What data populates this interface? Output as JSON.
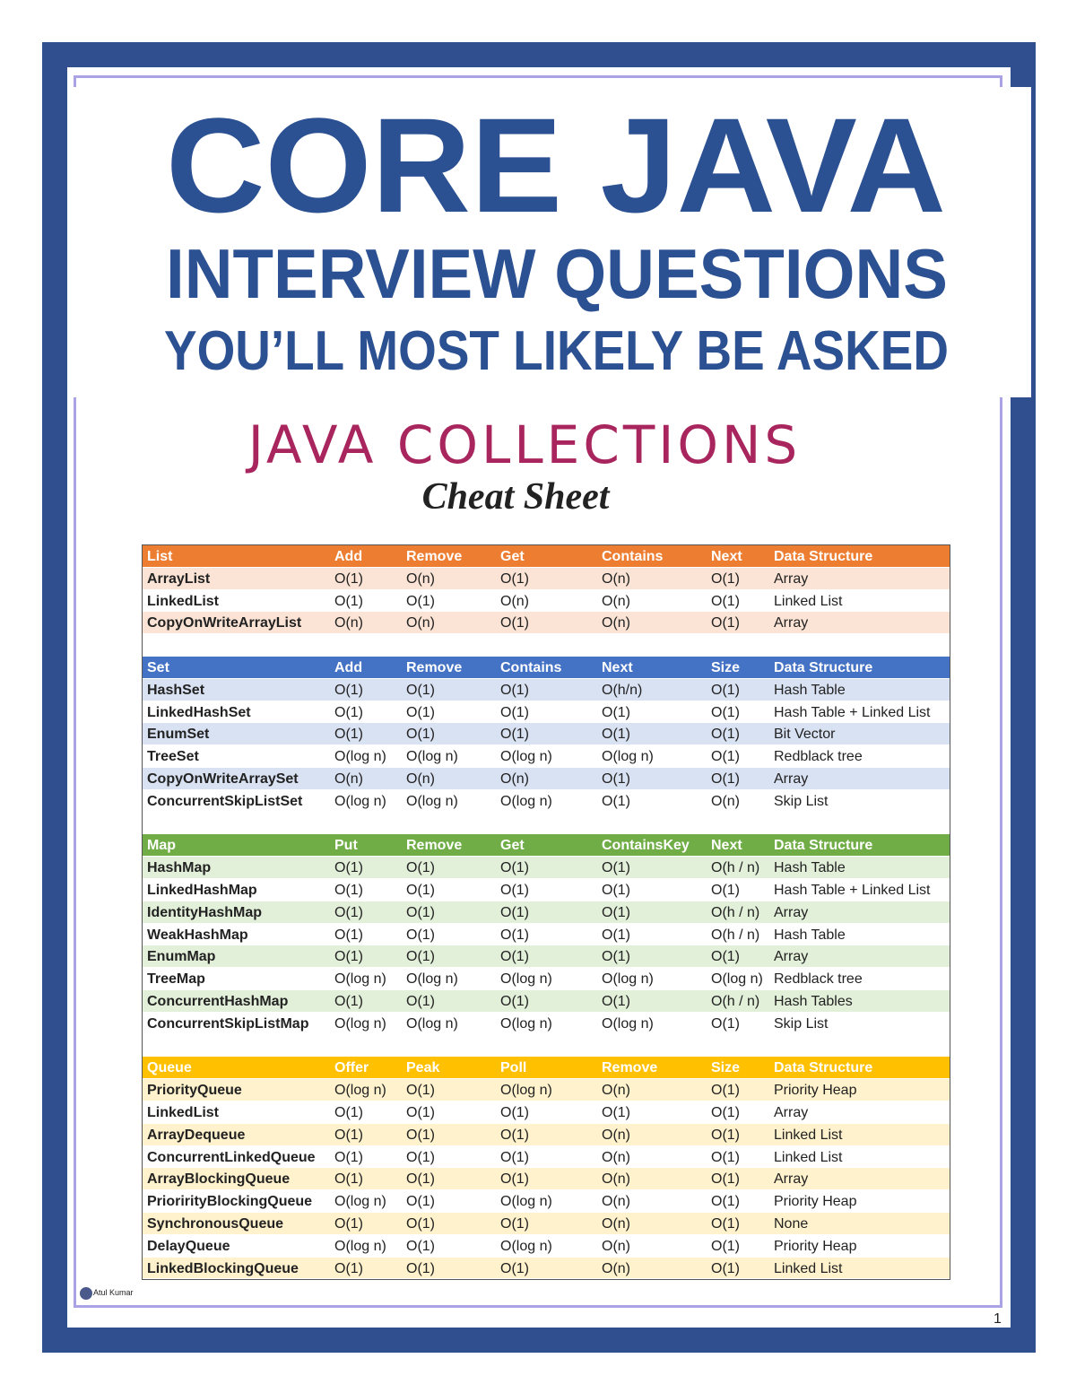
{
  "header": {
    "title": "CORE JAVA",
    "subtitle": "INTERVIEW QUESTIONS",
    "tagline": "YOU’LL MOST LIKELY BE ASKED"
  },
  "sheet": {
    "title": "JAVA COLLECTIONS",
    "subtitle": "Cheat Sheet"
  },
  "table": {
    "sections": [
      {
        "header": [
          "List",
          "Add",
          "Remove",
          "Get",
          "Contains",
          "Next",
          "Data Structure"
        ],
        "rows": [
          [
            "ArrayList",
            "O(1)",
            "O(n)",
            "O(1)",
            "O(n)",
            "O(1)",
            "Array"
          ],
          [
            "LinkedList",
            "O(1)",
            "O(1)",
            "O(n)",
            "O(n)",
            "O(1)",
            "Linked List"
          ],
          [
            "CopyOnWriteArrayList",
            "O(n)",
            "O(n)",
            "O(1)",
            "O(n)",
            "O(1)",
            "Array"
          ]
        ]
      },
      {
        "header": [
          "Set",
          "Add",
          "Remove",
          "Contains",
          "Next",
          "Size",
          "Data Structure"
        ],
        "rows": [
          [
            "HashSet",
            "O(1)",
            "O(1)",
            "O(1)",
            "O(h/n)",
            "O(1)",
            "Hash Table"
          ],
          [
            "LinkedHashSet",
            "O(1)",
            "O(1)",
            "O(1)",
            "O(1)",
            "O(1)",
            "Hash Table + Linked List"
          ],
          [
            "EnumSet",
            "O(1)",
            "O(1)",
            "O(1)",
            "O(1)",
            "O(1)",
            "Bit Vector"
          ],
          [
            "TreeSet",
            "O(log n)",
            "O(log n)",
            "O(log n)",
            "O(log n)",
            "O(1)",
            "Redblack tree"
          ],
          [
            "CopyOnWriteArraySet",
            "O(n)",
            "O(n)",
            "O(n)",
            "O(1)",
            "O(1)",
            "Array"
          ],
          [
            "ConcurrentSkipListSet",
            "O(log n)",
            "O(log n)",
            "O(log n)",
            "O(1)",
            "O(n)",
            "Skip List"
          ]
        ]
      },
      {
        "header": [
          "Map",
          "Put",
          "Remove",
          "Get",
          "ContainsKey",
          "Next",
          "Data Structure"
        ],
        "rows": [
          [
            "HashMap",
            "O(1)",
            "O(1)",
            "O(1)",
            "O(1)",
            "O(h / n)",
            "Hash Table"
          ],
          [
            "LinkedHashMap",
            "O(1)",
            "O(1)",
            "O(1)",
            "O(1)",
            "O(1)",
            "Hash Table + Linked List"
          ],
          [
            "IdentityHashMap",
            "O(1)",
            "O(1)",
            "O(1)",
            "O(1)",
            "O(h / n)",
            "Array"
          ],
          [
            "WeakHashMap",
            "O(1)",
            "O(1)",
            "O(1)",
            "O(1)",
            "O(h / n)",
            "Hash Table"
          ],
          [
            "EnumMap",
            "O(1)",
            "O(1)",
            "O(1)",
            "O(1)",
            "O(1)",
            "Array"
          ],
          [
            "TreeMap",
            "O(log n)",
            "O(log n)",
            "O(log n)",
            "O(log n)",
            "O(log n)",
            "Redblack tree"
          ],
          [
            "ConcurrentHashMap",
            "O(1)",
            "O(1)",
            "O(1)",
            "O(1)",
            "O(h / n)",
            "Hash Tables"
          ],
          [
            "ConcurrentSkipListMap",
            "O(log n)",
            "O(log n)",
            "O(log n)",
            "O(log n)",
            "O(1)",
            "Skip List"
          ]
        ]
      },
      {
        "header": [
          "Queue",
          "Offer",
          "Peak",
          "Poll",
          "Remove",
          "Size",
          "Data Structure"
        ],
        "rows": [
          [
            "PriorityQueue",
            "O(log n)",
            "O(1)",
            "O(log n)",
            "O(n)",
            "O(1)",
            "Priority Heap"
          ],
          [
            "LinkedList",
            "O(1)",
            "O(1)",
            "O(1)",
            "O(1)",
            "O(1)",
            "Array"
          ],
          [
            "ArrayDequeue",
            "O(1)",
            "O(1)",
            "O(1)",
            "O(n)",
            "O(1)",
            "Linked List"
          ],
          [
            "ConcurrentLinkedQueue",
            "O(1)",
            "O(1)",
            "O(1)",
            "O(n)",
            "O(1)",
            "Linked List"
          ],
          [
            "ArrayBlockingQueue",
            "O(1)",
            "O(1)",
            "O(1)",
            "O(n)",
            "O(1)",
            "Array"
          ],
          [
            "PriorirityBlockingQueue",
            "O(log n)",
            "O(1)",
            "O(log n)",
            "O(n)",
            "O(1)",
            "Priority Heap"
          ],
          [
            "SynchronousQueue",
            "O(1)",
            "O(1)",
            "O(1)",
            "O(n)",
            "O(1)",
            "None"
          ],
          [
            "DelayQueue",
            "O(log n)",
            "O(1)",
            "O(log n)",
            "O(n)",
            "O(1)",
            "Priority Heap"
          ],
          [
            "LinkedBlockingQueue",
            "O(1)",
            "O(1)",
            "O(1)",
            "O(n)",
            "O(1)",
            "Linked List"
          ]
        ]
      }
    ]
  },
  "footer": {
    "author": "Atul Kumar",
    "page": "1"
  }
}
